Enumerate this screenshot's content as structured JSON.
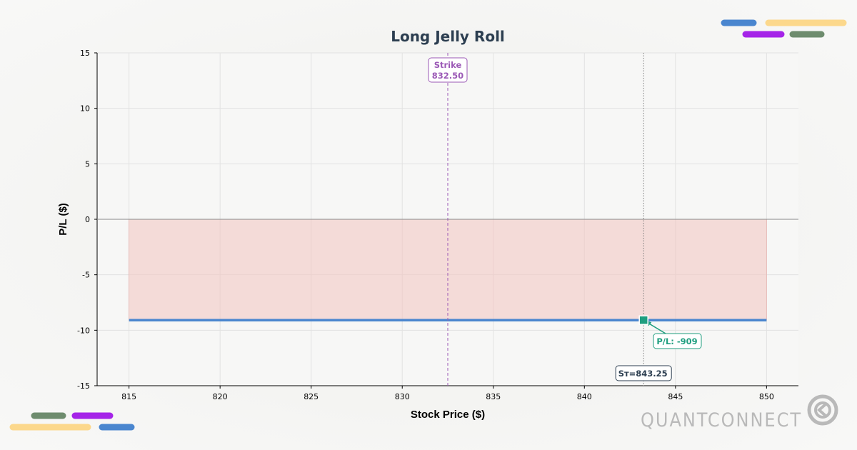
{
  "chart_data": {
    "type": "line",
    "title": "Long Jelly Roll",
    "xlabel": "Stock Price ($)",
    "ylabel": "P/L ($)",
    "xlim": [
      813.25,
      851.75
    ],
    "ylim": [
      -15,
      15
    ],
    "x_ticks": [
      815,
      820,
      825,
      830,
      835,
      840,
      845,
      850
    ],
    "y_ticks": [
      -15,
      -10,
      -5,
      0,
      5,
      10,
      15
    ],
    "grid": true,
    "series": [
      {
        "x": [
          815,
          850
        ],
        "y": [
          -9.09,
          -9.09
        ],
        "color": "#4a86cf"
      }
    ],
    "loss_fill_color": "#f2c4c0",
    "strike": {
      "value": 832.5,
      "label": "Strike",
      "value_label": "832.50",
      "color": "#9b59b6"
    },
    "current_price": {
      "value": 843.25,
      "label": "Sᴛ=843.25",
      "pl_label": "P/L: -909",
      "marker_color": "#1f9e7f"
    }
  },
  "decorations": {
    "colors": {
      "blue": "#4a86cf",
      "yellow": "#fcd88c",
      "purple": "#a524e8",
      "green": "#6e8c6e"
    }
  },
  "branding": {
    "logo_text": "QUANTCONNECT"
  }
}
